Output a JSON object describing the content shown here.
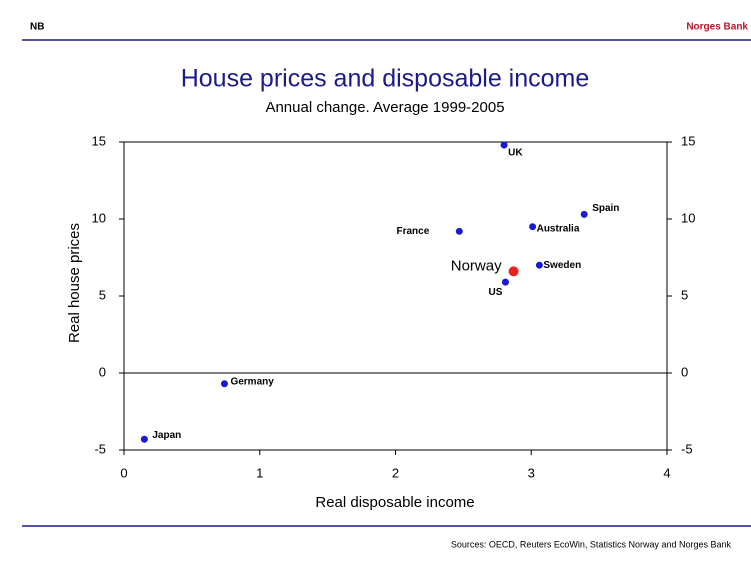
{
  "header": {
    "logo": "NB",
    "brand": "Norges Bank"
  },
  "chart_data": {
    "type": "scatter",
    "title": "House prices and disposable income",
    "subtitle": "Annual change. Average 1999-2005",
    "x_label": "Real disposable income",
    "y_label": "Real house prices",
    "labels": [
      "UK",
      "France",
      "Australia",
      "Spain",
      "Sweden",
      "Norway",
      "US",
      "Germany",
      "Japan"
    ],
    "x": [
      2.8,
      2.47,
      3.01,
      3.39,
      3.06,
      2.87,
      2.81,
      0.74,
      0.15
    ],
    "values": [
      14.8,
      9.2,
      9.5,
      10.3,
      7.0,
      6.6,
      5.9,
      -0.7,
      -4.3
    ],
    "colors": [
      "#1a1ad6",
      "#1a1ad6",
      "#1a1ad6",
      "#1a1ad6",
      "#1a1ad6",
      "#e8231e",
      "#1a1ad6",
      "#1a1ad6",
      "#1a1ad6"
    ],
    "xlim": [
      0,
      4
    ],
    "xticks": [
      0,
      1,
      2,
      3,
      4
    ],
    "ylim": [
      -5,
      15
    ],
    "yticks": [
      -5,
      0,
      5,
      10,
      15
    ],
    "y2lim": [
      -5,
      15
    ],
    "y2ticks": [
      -5,
      0,
      5,
      10,
      15
    ]
  },
  "footer": {
    "source": "Sources: OECD, Reuters EcoWin, Statistics Norway and Norges Bank"
  }
}
